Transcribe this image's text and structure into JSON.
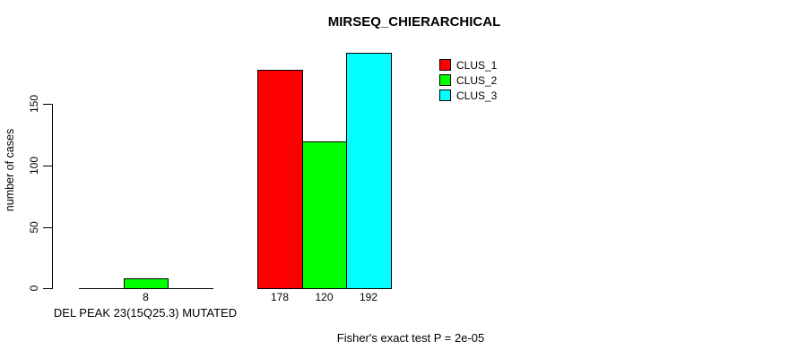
{
  "chart_data": {
    "type": "bar",
    "title": "MIRSEQ_CHIERARCHICAL",
    "ylabel": "number of cases",
    "xlabel": "",
    "ylim": [
      0,
      150
    ],
    "yticks": [
      0,
      50,
      100,
      150
    ],
    "categories": [
      "DEL PEAK 23(15Q25.3) MUTATED",
      ""
    ],
    "series": [
      {
        "name": "CLUS_1",
        "color": "#ff0000",
        "values": [
          0,
          178
        ]
      },
      {
        "name": "CLUS_2",
        "color": "#00ff00",
        "values": [
          8,
          120
        ]
      },
      {
        "name": "CLUS_3",
        "color": "#00ffff",
        "values": [
          0,
          192
        ]
      }
    ],
    "bar_labels": [
      [
        "",
        "8",
        ""
      ],
      [
        "178",
        "120",
        "192"
      ]
    ],
    "annotation": "Fisher's exact test P = 2e-05",
    "legend_position": "upper-right",
    "grid": false,
    "bar_border_color": "#000000"
  }
}
